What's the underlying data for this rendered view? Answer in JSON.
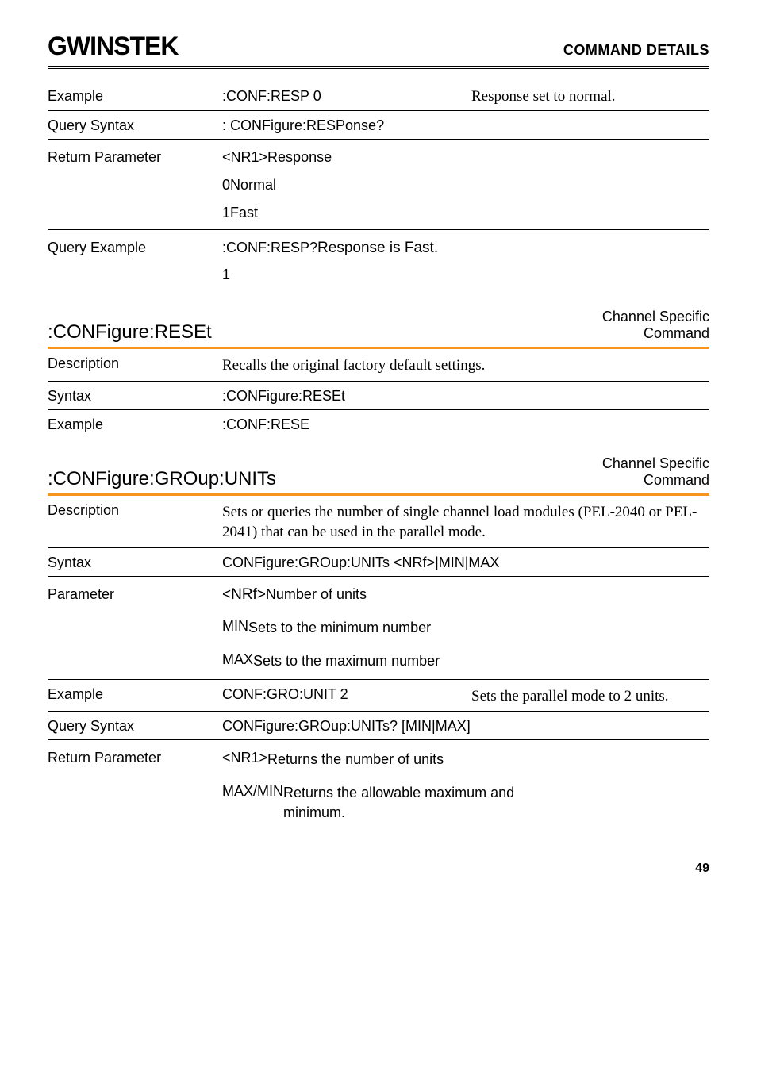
{
  "header": {
    "logo": "GWINSTEK",
    "section": "COMMAND DETAILS"
  },
  "block1": {
    "example_label": "Example",
    "example_cmd": ":CONF:RESP 0",
    "example_desc": "Response set to normal.",
    "qsyntax_label": "Query Syntax",
    "qsyntax_val": ": CONFigure:RESPonse?",
    "rparam_label": "Return Parameter",
    "rparam_type": "<NR1>",
    "rparam_type_desc": "Response",
    "rparam_0": "0",
    "rparam_0_desc": "Normal",
    "rparam_1": "1",
    "rparam_1_desc": "Fast",
    "qexample_label": "Query Example",
    "qexample_cmd": ":CONF:RESP?",
    "qexample_ret": "1",
    "qexample_desc": "Response is Fast."
  },
  "cmd1": {
    "name": ":CONFigure:RESEt",
    "type1": "Channel Specific",
    "type2": "Command",
    "desc_label": "Description",
    "desc_val": "Recalls the original factory default settings.",
    "syntax_label": "Syntax",
    "syntax_val": ":CONFigure:RESEt",
    "example_label": "Example",
    "example_val": ":CONF:RESE"
  },
  "cmd2": {
    "name": ":CONFigure:GROup:UNITs",
    "type1": "Channel Specific",
    "type2": "Command",
    "desc_label": "Description",
    "desc_val": "Sets or queries the number of single channel load modules (PEL-2040 or PEL-2041) that can be used in the parallel mode.",
    "syntax_label": "Syntax",
    "syntax_val": "CONFigure:GROup:UNITs <NRf>|MIN|MAX",
    "param_label": "Parameter",
    "param_nrf": "<NRf>",
    "param_nrf_desc": "Number of units",
    "param_min": "MIN",
    "param_min_desc": "Sets to the minimum number",
    "param_max": "MAX",
    "param_max_desc": "Sets to the maximum number",
    "example_label": "Example",
    "example_cmd": "CONF:GRO:UNIT 2",
    "example_desc": "Sets the parallel mode to 2 units.",
    "qsyntax_label": "Query Syntax",
    "qsyntax_val": "CONFigure:GROup:UNITs? [MIN|MAX]",
    "rparam_label": "Return Parameter",
    "rparam_nr1": "<NR1>",
    "rparam_nr1_desc": "Returns the number of units",
    "rparam_mm": "MAX/MIN",
    "rparam_mm_desc": "Returns the allowable maximum and minimum."
  },
  "footer": {
    "page": "49"
  }
}
